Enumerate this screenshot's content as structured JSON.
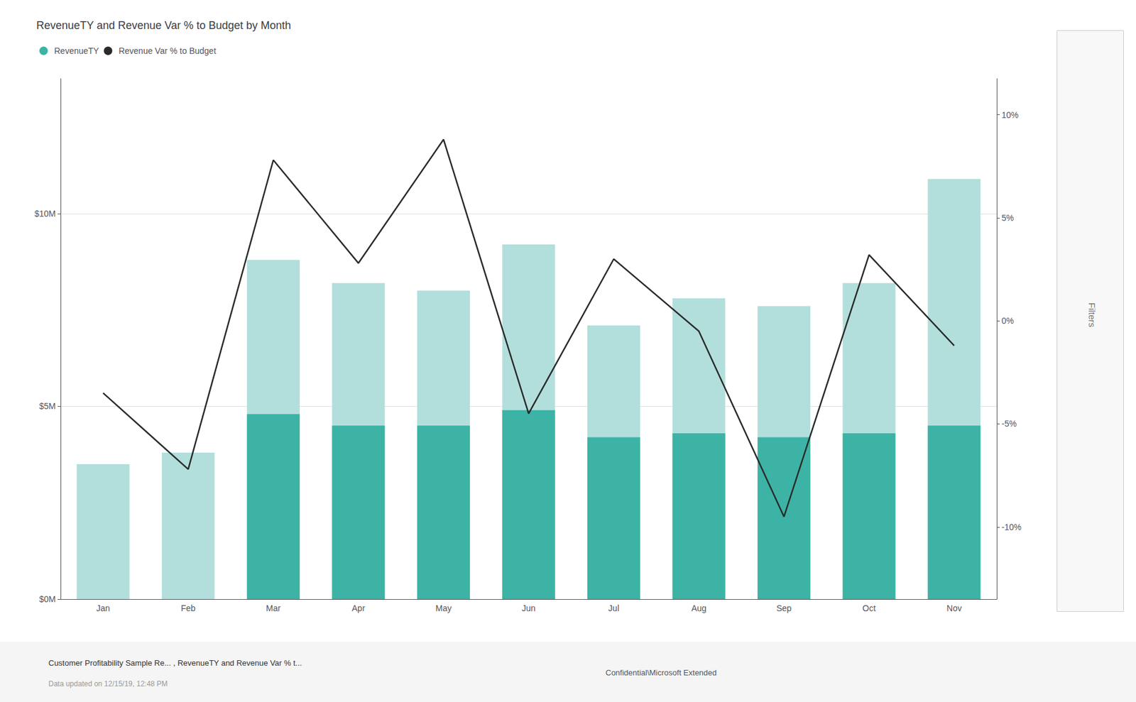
{
  "chart_data": {
    "type": "bar",
    "title": "RevenueTY and Revenue Var % to Budget by Month",
    "categories": [
      "Jan",
      "Feb",
      "Mar",
      "Apr",
      "May",
      "Jun",
      "Jul",
      "Aug",
      "Sep",
      "Oct",
      "Nov"
    ],
    "series": [
      {
        "name": "RevenueTY",
        "type": "bar",
        "color": "#b2dfdb",
        "values": [
          3.5,
          3.8,
          8.8,
          8.2,
          8.0,
          9.2,
          7.1,
          7.8,
          7.6,
          8.2,
          10.9
        ]
      },
      {
        "name": "RevenueTY",
        "type": "bar",
        "color": "#3db3a5",
        "values": [
          0.0,
          0.0,
          4.8,
          4.5,
          4.5,
          4.9,
          4.2,
          4.3,
          4.2,
          4.3,
          4.5
        ]
      },
      {
        "name": "Revenue Var % to Budget",
        "type": "line",
        "color": "#2a2a2a",
        "axis": "y2",
        "values": [
          -3.5,
          -7.2,
          7.8,
          2.8,
          8.8,
          -4.5,
          3.0,
          -0.5,
          -9.5,
          3.2,
          -1.2
        ]
      }
    ],
    "ylim": [
      0,
      13.5
    ],
    "yticks": [
      {
        "value": 0,
        "label": "$0M"
      },
      {
        "value": 5,
        "label": "$5M"
      },
      {
        "value": 10,
        "label": "$10M"
      }
    ],
    "y2lim": [
      -13.5,
      11.75
    ],
    "y2ticks": [
      {
        "value": -10,
        "label": "-10%"
      },
      {
        "value": -5,
        "label": "-5%"
      },
      {
        "value": 0,
        "label": "0%"
      },
      {
        "value": 5,
        "label": "5%"
      },
      {
        "value": 10,
        "label": "10%"
      }
    ],
    "grid": true,
    "legend": "top-left",
    "annotations": [
      "Filters",
      "Customer Profitability Sample Re... , RevenueTY and Revenue Var % t...",
      "Data updated on 12/15/19, 12:48 PM",
      "Confidential\\Microsoft Extended"
    ]
  }
}
